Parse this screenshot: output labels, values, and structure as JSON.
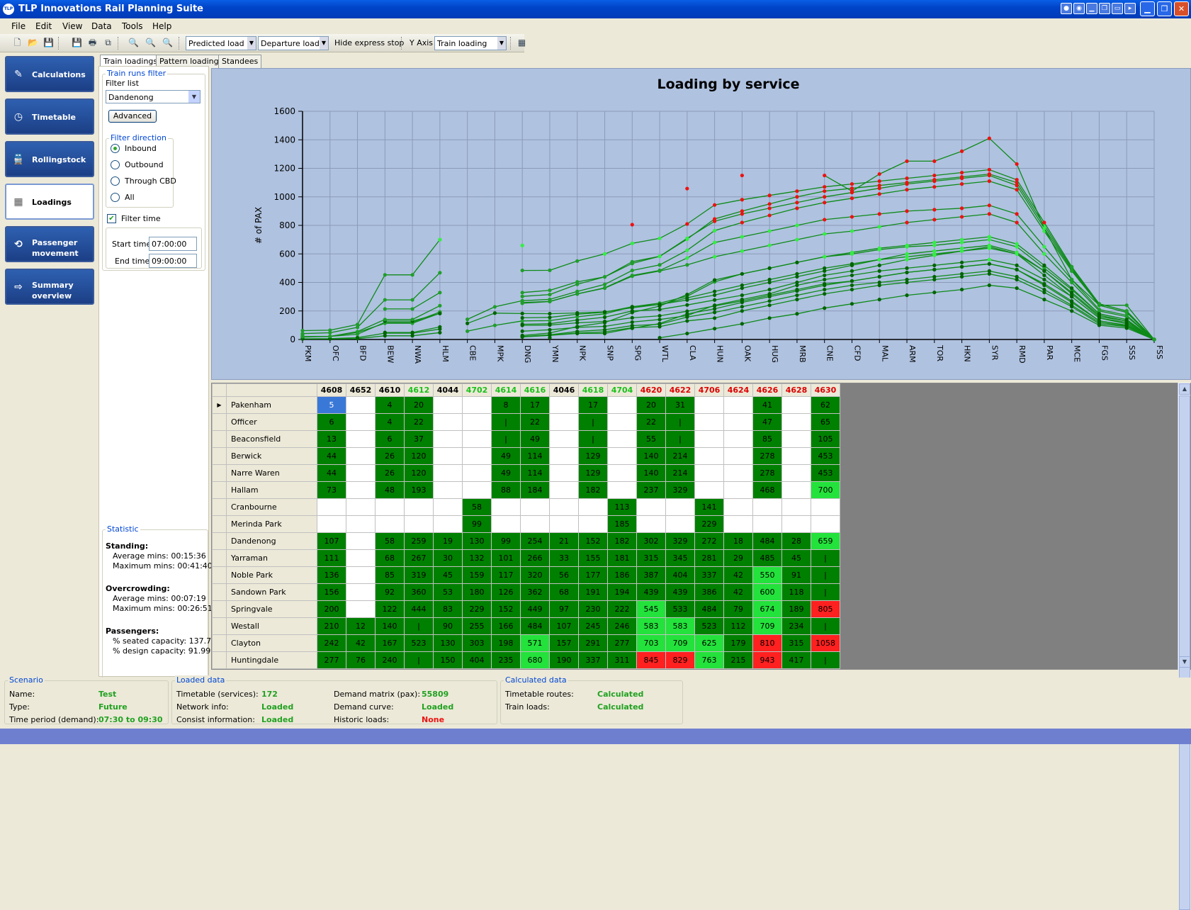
{
  "window": {
    "title": "TLP Innovations Rail Planning Suite",
    "app_icon": "TLP"
  },
  "menu": [
    "File",
    "Edit",
    "View",
    "Data",
    "Tools",
    "Help"
  ],
  "toolbar": {
    "dd1": "Predicted load",
    "dd2": "Departure load",
    "hide_express": "Hide express stop",
    "yaxis_label": "Y Axis",
    "yaxis_value": "Train loading"
  },
  "nav": [
    "Calculations",
    "Timetable",
    "Rollingstock",
    "Loadings",
    "Passenger movement",
    "Summary overview"
  ],
  "tabs": [
    "Train loadings",
    "Pattern loadings",
    "Standees"
  ],
  "filter": {
    "group_title": "Train runs filter",
    "list_label": "Filter list",
    "list_value": "Dandenong",
    "advanced": "Advanced",
    "direction_title": "Filter direction",
    "directions": [
      "Inbound",
      "Outbound",
      "Through CBD",
      "All"
    ],
    "filter_time": "Filter time",
    "start_label": "Start time",
    "start_value": "07:00:00",
    "end_label": "End time",
    "end_value": "09:00:00"
  },
  "statistic": {
    "title": "Statistic",
    "standing_h": "Standing:",
    "standing_avg": "Average mins: 00:15:36",
    "standing_max": "Maximum mins: 00:41:40",
    "over_h": "Overcrowding:",
    "over_avg": "Average mins: 00:07:19",
    "over_max": "Maximum mins: 00:26:51",
    "pass_h": "Passengers:",
    "pass_seated": "% seated capacity: 137.75%",
    "pass_design": "% design capacity: 91.99%"
  },
  "chart_data": {
    "type": "line",
    "title": "Loading by service",
    "ylabel": "# of PAX",
    "xlabel": "",
    "ylim": [
      0,
      1600
    ],
    "yticks": [
      0,
      200,
      400,
      600,
      800,
      1000,
      1200,
      1400,
      1600
    ],
    "grid": true,
    "categories": [
      "PKM",
      "OFC",
      "BFD",
      "BEW",
      "NWA",
      "HLM",
      "CBE",
      "MPK",
      "DNG",
      "YMN",
      "NPK",
      "SNP",
      "SPG",
      "WTL",
      "CLA",
      "HUN",
      "OAK",
      "HUG",
      "MRB",
      "CNE",
      "CFD",
      "MAL",
      "ARM",
      "TOR",
      "HKN",
      "SYR",
      "RMD",
      "PAR",
      "MCE",
      "FGS",
      "SSS",
      "FSS"
    ],
    "series": [
      {
        "values": [
          5,
          6,
          13,
          44,
          44,
          73,
          null,
          null,
          107,
          111,
          136,
          156,
          200,
          210,
          242,
          277,
          310,
          350,
          400,
          450,
          480,
          520,
          560,
          590,
          620,
          650,
          600,
          450,
          300,
          150,
          120,
          0
        ]
      },
      {
        "values": [
          null,
          null,
          null,
          null,
          null,
          null,
          null,
          null,
          null,
          12,
          null,
          null,
          null,
          12,
          42,
          76,
          110,
          150,
          180,
          220,
          250,
          280,
          310,
          330,
          350,
          380,
          360,
          280,
          200,
          100,
          80,
          0
        ]
      },
      {
        "values": [
          4,
          4,
          6,
          26,
          26,
          48,
          null,
          null,
          58,
          68,
          85,
          92,
          122,
          140,
          167,
          240,
          280,
          320,
          380,
          420,
          450,
          480,
          500,
          520,
          540,
          560,
          520,
          420,
          300,
          150,
          110,
          0
        ]
      },
      {
        "values": [
          20,
          22,
          37,
          120,
          120,
          193,
          null,
          null,
          259,
          267,
          319,
          360,
          444,
          480,
          523,
          580,
          620,
          660,
          700,
          740,
          760,
          790,
          820,
          840,
          860,
          880,
          820,
          600,
          400,
          200,
          160,
          0
        ]
      },
      {
        "values": [
          null,
          null,
          null,
          null,
          null,
          null,
          null,
          null,
          19,
          30,
          45,
          53,
          83,
          90,
          130,
          150,
          200,
          240,
          280,
          320,
          350,
          380,
          400,
          420,
          440,
          460,
          420,
          330,
          230,
          110,
          90,
          0
        ]
      },
      {
        "values": [
          null,
          null,
          null,
          null,
          null,
          null,
          58,
          99,
          130,
          132,
          159,
          180,
          229,
          255,
          303,
          404,
          460,
          500,
          540,
          580,
          600,
          630,
          650,
          660,
          680,
          700,
          650,
          500,
          350,
          180,
          140,
          0
        ]
      },
      {
        "values": [
          8,
          null,
          null,
          49,
          49,
          88,
          null,
          null,
          99,
          101,
          117,
          126,
          152,
          166,
          198,
          235,
          270,
          310,
          350,
          390,
          410,
          440,
          470,
          490,
          510,
          530,
          490,
          380,
          260,
          130,
          100,
          0
        ]
      },
      {
        "values": [
          17,
          22,
          49,
          114,
          114,
          184,
          null,
          null,
          254,
          266,
          320,
          362,
          449,
          484,
          571,
          680,
          720,
          760,
          800,
          840,
          860,
          880,
          900,
          910,
          920,
          940,
          880,
          650,
          420,
          210,
          170,
          0
        ]
      },
      {
        "values": [
          null,
          null,
          null,
          null,
          null,
          null,
          null,
          null,
          21,
          33,
          56,
          68,
          97,
          107,
          157,
          190,
          230,
          270,
          310,
          350,
          380,
          400,
          420,
          440,
          460,
          480,
          440,
          350,
          240,
          120,
          95,
          0
        ]
      },
      {
        "values": [
          17,
          null,
          null,
          129,
          129,
          182,
          null,
          null,
          152,
          155,
          177,
          191,
          230,
          245,
          291,
          337,
          380,
          420,
          460,
          500,
          530,
          560,
          580,
          600,
          620,
          640,
          600,
          480,
          320,
          160,
          130,
          0
        ]
      },
      {
        "values": [
          null,
          null,
          null,
          null,
          null,
          null,
          113,
          185,
          182,
          181,
          186,
          194,
          222,
          246,
          277,
          311,
          360,
          400,
          440,
          480,
          520,
          560,
          600,
          620,
          640,
          660,
          610,
          480,
          330,
          170,
          130,
          0
        ]
      },
      {
        "values": [
          20,
          22,
          55,
          140,
          140,
          237,
          null,
          null,
          302,
          315,
          387,
          439,
          545,
          583,
          703,
          845,
          900,
          950,
          1000,
          1040,
          1060,
          1080,
          1100,
          1120,
          1140,
          1160,
          1100,
          800,
          500,
          250,
          200,
          0
        ]
      },
      {
        "values": [
          31,
          null,
          null,
          214,
          214,
          329,
          null,
          null,
          329,
          345,
          404,
          439,
          533,
          583,
          709,
          829,
          880,
          920,
          960,
          1000,
          1030,
          1060,
          1090,
          1110,
          1130,
          1150,
          1080,
          780,
          490,
          240,
          190,
          0
        ]
      },
      {
        "values": [
          null,
          null,
          null,
          null,
          null,
          null,
          141,
          229,
          272,
          281,
          337,
          386,
          484,
          523,
          625,
          763,
          820,
          870,
          920,
          960,
          990,
          1020,
          1050,
          1070,
          1090,
          1110,
          1050,
          760,
          480,
          240,
          190,
          0
        ]
      },
      {
        "values": [
          null,
          null,
          null,
          null,
          null,
          null,
          null,
          null,
          18,
          29,
          42,
          42,
          79,
          112,
          179,
          215,
          260,
          300,
          340,
          380,
          410,
          440,
          470,
          490,
          510,
          530,
          490,
          390,
          270,
          130,
          100,
          0
        ]
      },
      {
        "values": [
          41,
          47,
          85,
          278,
          278,
          468,
          null,
          null,
          484,
          485,
          550,
          600,
          674,
          709,
          810,
          943,
          980,
          1010,
          1040,
          1070,
          1090,
          1110,
          1130,
          1150,
          1170,
          1190,
          1120,
          820,
          510,
          250,
          200,
          0
        ]
      },
      {
        "values": [
          null,
          null,
          null,
          null,
          null,
          null,
          null,
          null,
          28,
          45,
          91,
          118,
          189,
          234,
          315,
          417,
          460,
          500,
          540,
          580,
          610,
          640,
          660,
          680,
          700,
          720,
          670,
          520,
          360,
          180,
          140,
          0
        ]
      },
      {
        "values": [
          62,
          65,
          105,
          453,
          453,
          700,
          null,
          null,
          659,
          null,
          null,
          null,
          805,
          null,
          1058,
          null,
          1150,
          null,
          null,
          1150,
          1040,
          1160,
          1250,
          1250,
          1320,
          1410,
          1230,
          780,
          420,
          240,
          240,
          0
        ]
      }
    ]
  },
  "grid": {
    "columns": [
      "4608",
      "4652",
      "4610",
      "4612",
      "4044",
      "4702",
      "4614",
      "4616",
      "4046",
      "4618",
      "4704",
      "4620",
      "4622",
      "4706",
      "4624",
      "4626",
      "4628",
      "4630"
    ],
    "rows": [
      {
        "name": "Pakenham",
        "cells": [
          "5",
          "",
          "4",
          "20",
          "",
          "",
          "8",
          "17",
          "",
          "17",
          "",
          "20",
          "31",
          "",
          "",
          "41",
          "",
          "62"
        ]
      },
      {
        "name": "Officer",
        "cells": [
          "6",
          "",
          "4",
          "22",
          "",
          "",
          "|",
          "22",
          "",
          "|",
          "",
          "22",
          "|",
          "",
          "",
          "47",
          "",
          "65"
        ]
      },
      {
        "name": "Beaconsfield",
        "cells": [
          "13",
          "",
          "6",
          "37",
          "",
          "",
          "|",
          "49",
          "",
          "|",
          "",
          "55",
          "|",
          "",
          "",
          "85",
          "",
          "105"
        ]
      },
      {
        "name": "Berwick",
        "cells": [
          "44",
          "",
          "26",
          "120",
          "",
          "",
          "49",
          "114",
          "",
          "129",
          "",
          "140",
          "214",
          "",
          "",
          "278",
          "",
          "453"
        ]
      },
      {
        "name": "Narre Waren",
        "cells": [
          "44",
          "",
          "26",
          "120",
          "",
          "",
          "49",
          "114",
          "",
          "129",
          "",
          "140",
          "214",
          "",
          "",
          "278",
          "",
          "453"
        ]
      },
      {
        "name": "Hallam",
        "cells": [
          "73",
          "",
          "48",
          "193",
          "",
          "",
          "88",
          "184",
          "",
          "182",
          "",
          "237",
          "329",
          "",
          "",
          "468",
          "",
          "700"
        ]
      },
      {
        "name": "Cranbourne",
        "cells": [
          "",
          "",
          "",
          "",
          "",
          "58",
          "",
          "",
          "",
          "",
          "113",
          "",
          "",
          "141",
          "",
          "",
          "",
          ""
        ]
      },
      {
        "name": "Merinda Park",
        "cells": [
          "",
          "",
          "",
          "",
          "",
          "99",
          "",
          "",
          "",
          "",
          "185",
          "",
          "",
          "229",
          "",
          "",
          "",
          ""
        ]
      },
      {
        "name": "Dandenong",
        "cells": [
          "107",
          "",
          "58",
          "259",
          "19",
          "130",
          "99",
          "254",
          "21",
          "152",
          "182",
          "302",
          "329",
          "272",
          "18",
          "484",
          "28",
          "659"
        ]
      },
      {
        "name": "Yarraman",
        "cells": [
          "111",
          "",
          "68",
          "267",
          "30",
          "132",
          "101",
          "266",
          "33",
          "155",
          "181",
          "315",
          "345",
          "281",
          "29",
          "485",
          "45",
          "|"
        ]
      },
      {
        "name": "Noble Park",
        "cells": [
          "136",
          "",
          "85",
          "319",
          "45",
          "159",
          "117",
          "320",
          "56",
          "177",
          "186",
          "387",
          "404",
          "337",
          "42",
          "550",
          "91",
          "|"
        ]
      },
      {
        "name": "Sandown Park",
        "cells": [
          "156",
          "",
          "92",
          "360",
          "53",
          "180",
          "126",
          "362",
          "68",
          "191",
          "194",
          "439",
          "439",
          "386",
          "42",
          "600",
          "118",
          "|"
        ]
      },
      {
        "name": "Springvale",
        "cells": [
          "200",
          "",
          "122",
          "444",
          "83",
          "229",
          "152",
          "449",
          "97",
          "230",
          "222",
          "545",
          "533",
          "484",
          "79",
          "674",
          "189",
          "805"
        ]
      },
      {
        "name": "Westall",
        "cells": [
          "210",
          "12",
          "140",
          "|",
          "90",
          "255",
          "166",
          "484",
          "107",
          "245",
          "246",
          "583",
          "583",
          "523",
          "112",
          "709",
          "234",
          "|"
        ]
      },
      {
        "name": "Clayton",
        "cells": [
          "242",
          "42",
          "167",
          "523",
          "130",
          "303",
          "198",
          "571",
          "157",
          "291",
          "277",
          "703",
          "709",
          "625",
          "179",
          "810",
          "315",
          "1058"
        ]
      },
      {
        "name": "Huntingdale",
        "cells": [
          "277",
          "76",
          "240",
          "|",
          "150",
          "404",
          "235",
          "680",
          "190",
          "337",
          "311",
          "845",
          "829",
          "763",
          "215",
          "943",
          "417",
          "|"
        ]
      }
    ]
  },
  "scenario": {
    "title": "Scenario",
    "name_label": "Name:",
    "name": "Test",
    "type_label": "Type:",
    "type": "Future",
    "period_label": "Time period (demand):",
    "period": "07:30 to 09:30"
  },
  "loaded": {
    "title": "Loaded data",
    "tt_label": "Timetable (services):",
    "tt": "172",
    "net_label": "Network info:",
    "net": "Loaded",
    "consist_label": "Consist information:",
    "consist": "Loaded",
    "dm_label": "Demand matrix (pax):",
    "dm": "55809",
    "dc_label": "Demand curve:",
    "dc": "Loaded",
    "hl_label": "Historic loads:",
    "hl": "None"
  },
  "calculated": {
    "title": "Calculated data",
    "routes_label": "Timetable routes:",
    "routes": "Calculated",
    "loads_label": "Train loads:",
    "loads": "Calculated"
  },
  "colors": {
    "dark_green": "#008000",
    "light_green": "#23e23b",
    "red": "#ff2020",
    "selected": "#3a78d8",
    "line": "#118a18",
    "chart_bg": "#afc2e0"
  }
}
